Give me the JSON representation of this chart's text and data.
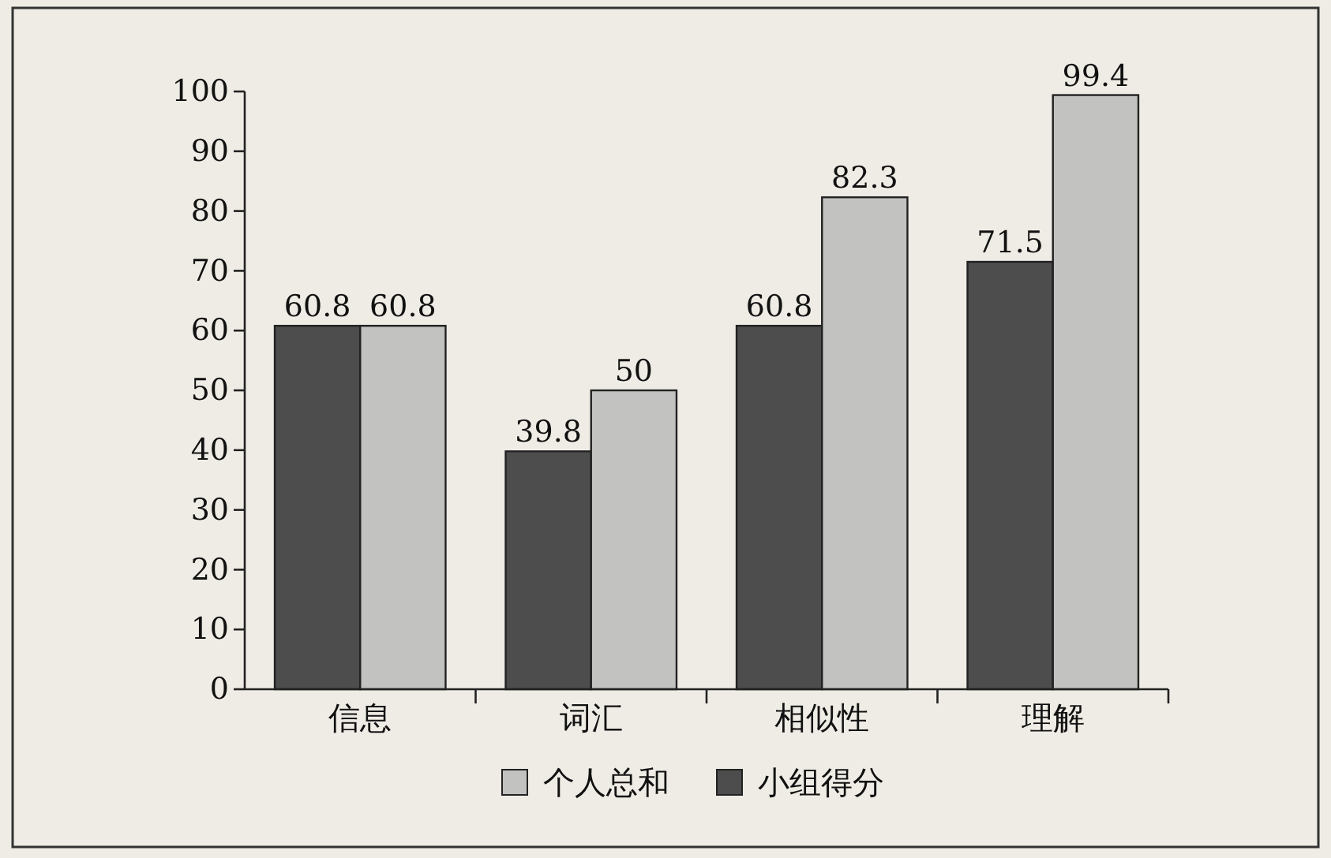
{
  "chart_data": {
    "type": "bar",
    "categories": [
      "信息",
      "词汇",
      "相似性",
      "理解"
    ],
    "series": [
      {
        "name": "小组得分",
        "color": "#4d4d4d",
        "values": [
          60.8,
          39.8,
          60.8,
          71.5
        ]
      },
      {
        "name": "个人总和",
        "color": "#c2c2c0",
        "values": [
          60.8,
          50,
          82.3,
          99.4
        ]
      }
    ],
    "ylim": [
      0,
      100
    ],
    "yticks": [
      0,
      10,
      20,
      30,
      40,
      50,
      60,
      70,
      80,
      90,
      100
    ],
    "grid": false,
    "legend": "bottom",
    "data_labels": true
  }
}
